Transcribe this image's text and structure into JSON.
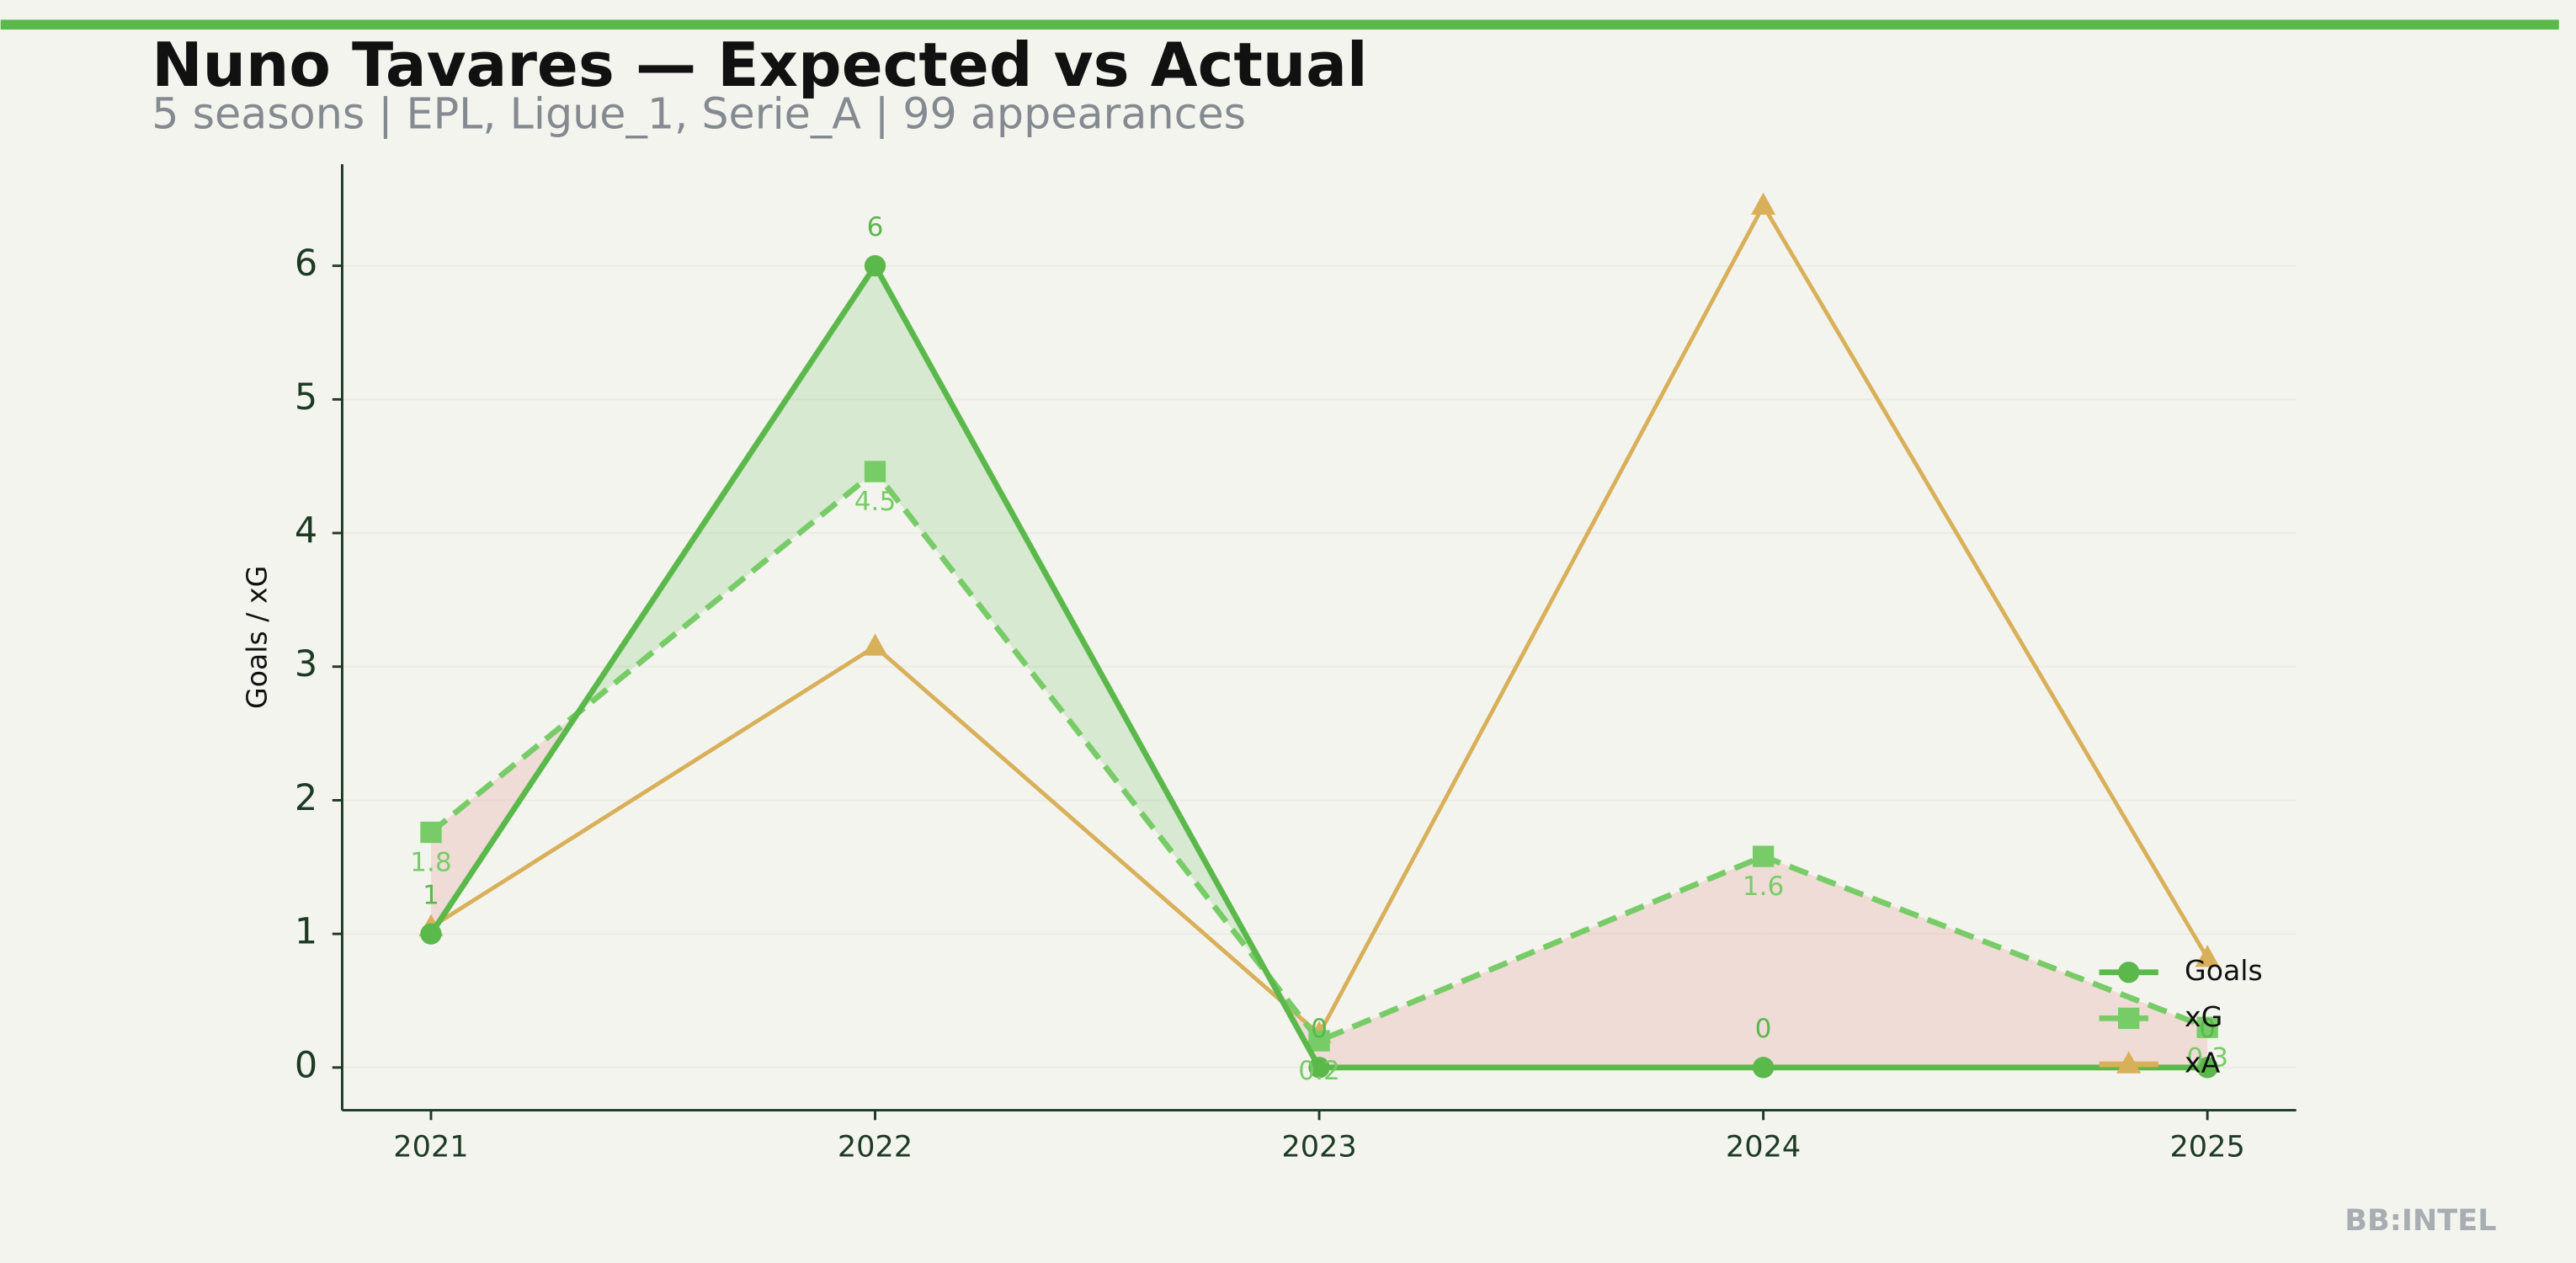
{
  "chart_data": {
    "type": "line",
    "title": "Nuno Tavares — Expected vs Actual",
    "subtitle": "5 seasons | EPL, Ligue_1, Serie_A | 99 appearances",
    "y_label": "Goals / xG",
    "watermark": "BB:INTEL",
    "categories": [
      "2021",
      "2022",
      "2023",
      "2024",
      "2025"
    ],
    "series": [
      {
        "name": "Goals",
        "color": "#5bb84b",
        "marker": "circle",
        "linestyle": "solid",
        "values": [
          1,
          6,
          0,
          0,
          0
        ]
      },
      {
        "name": "xG",
        "color": "#78cc68",
        "marker": "square",
        "linestyle": "dashed",
        "values": [
          1.76,
          4.46,
          0.2,
          1.58,
          0.3
        ],
        "value_labels": [
          "1.8",
          "4.5",
          "0.2",
          "1.6",
          "0.3"
        ]
      },
      {
        "name": "xA",
        "color": "#d9b05a",
        "marker": "triangle",
        "linestyle": "solid",
        "values": [
          1.05,
          3.15,
          0.25,
          6.45,
          0.82
        ]
      }
    ],
    "ylim": [
      -0.32,
      6.76
    ],
    "yticks": [
      0,
      1,
      2,
      3,
      4,
      5,
      6
    ],
    "legend": "lower right",
    "grid": true,
    "fill_above": "#5bb84b",
    "fill_below": "#e8a59c"
  }
}
